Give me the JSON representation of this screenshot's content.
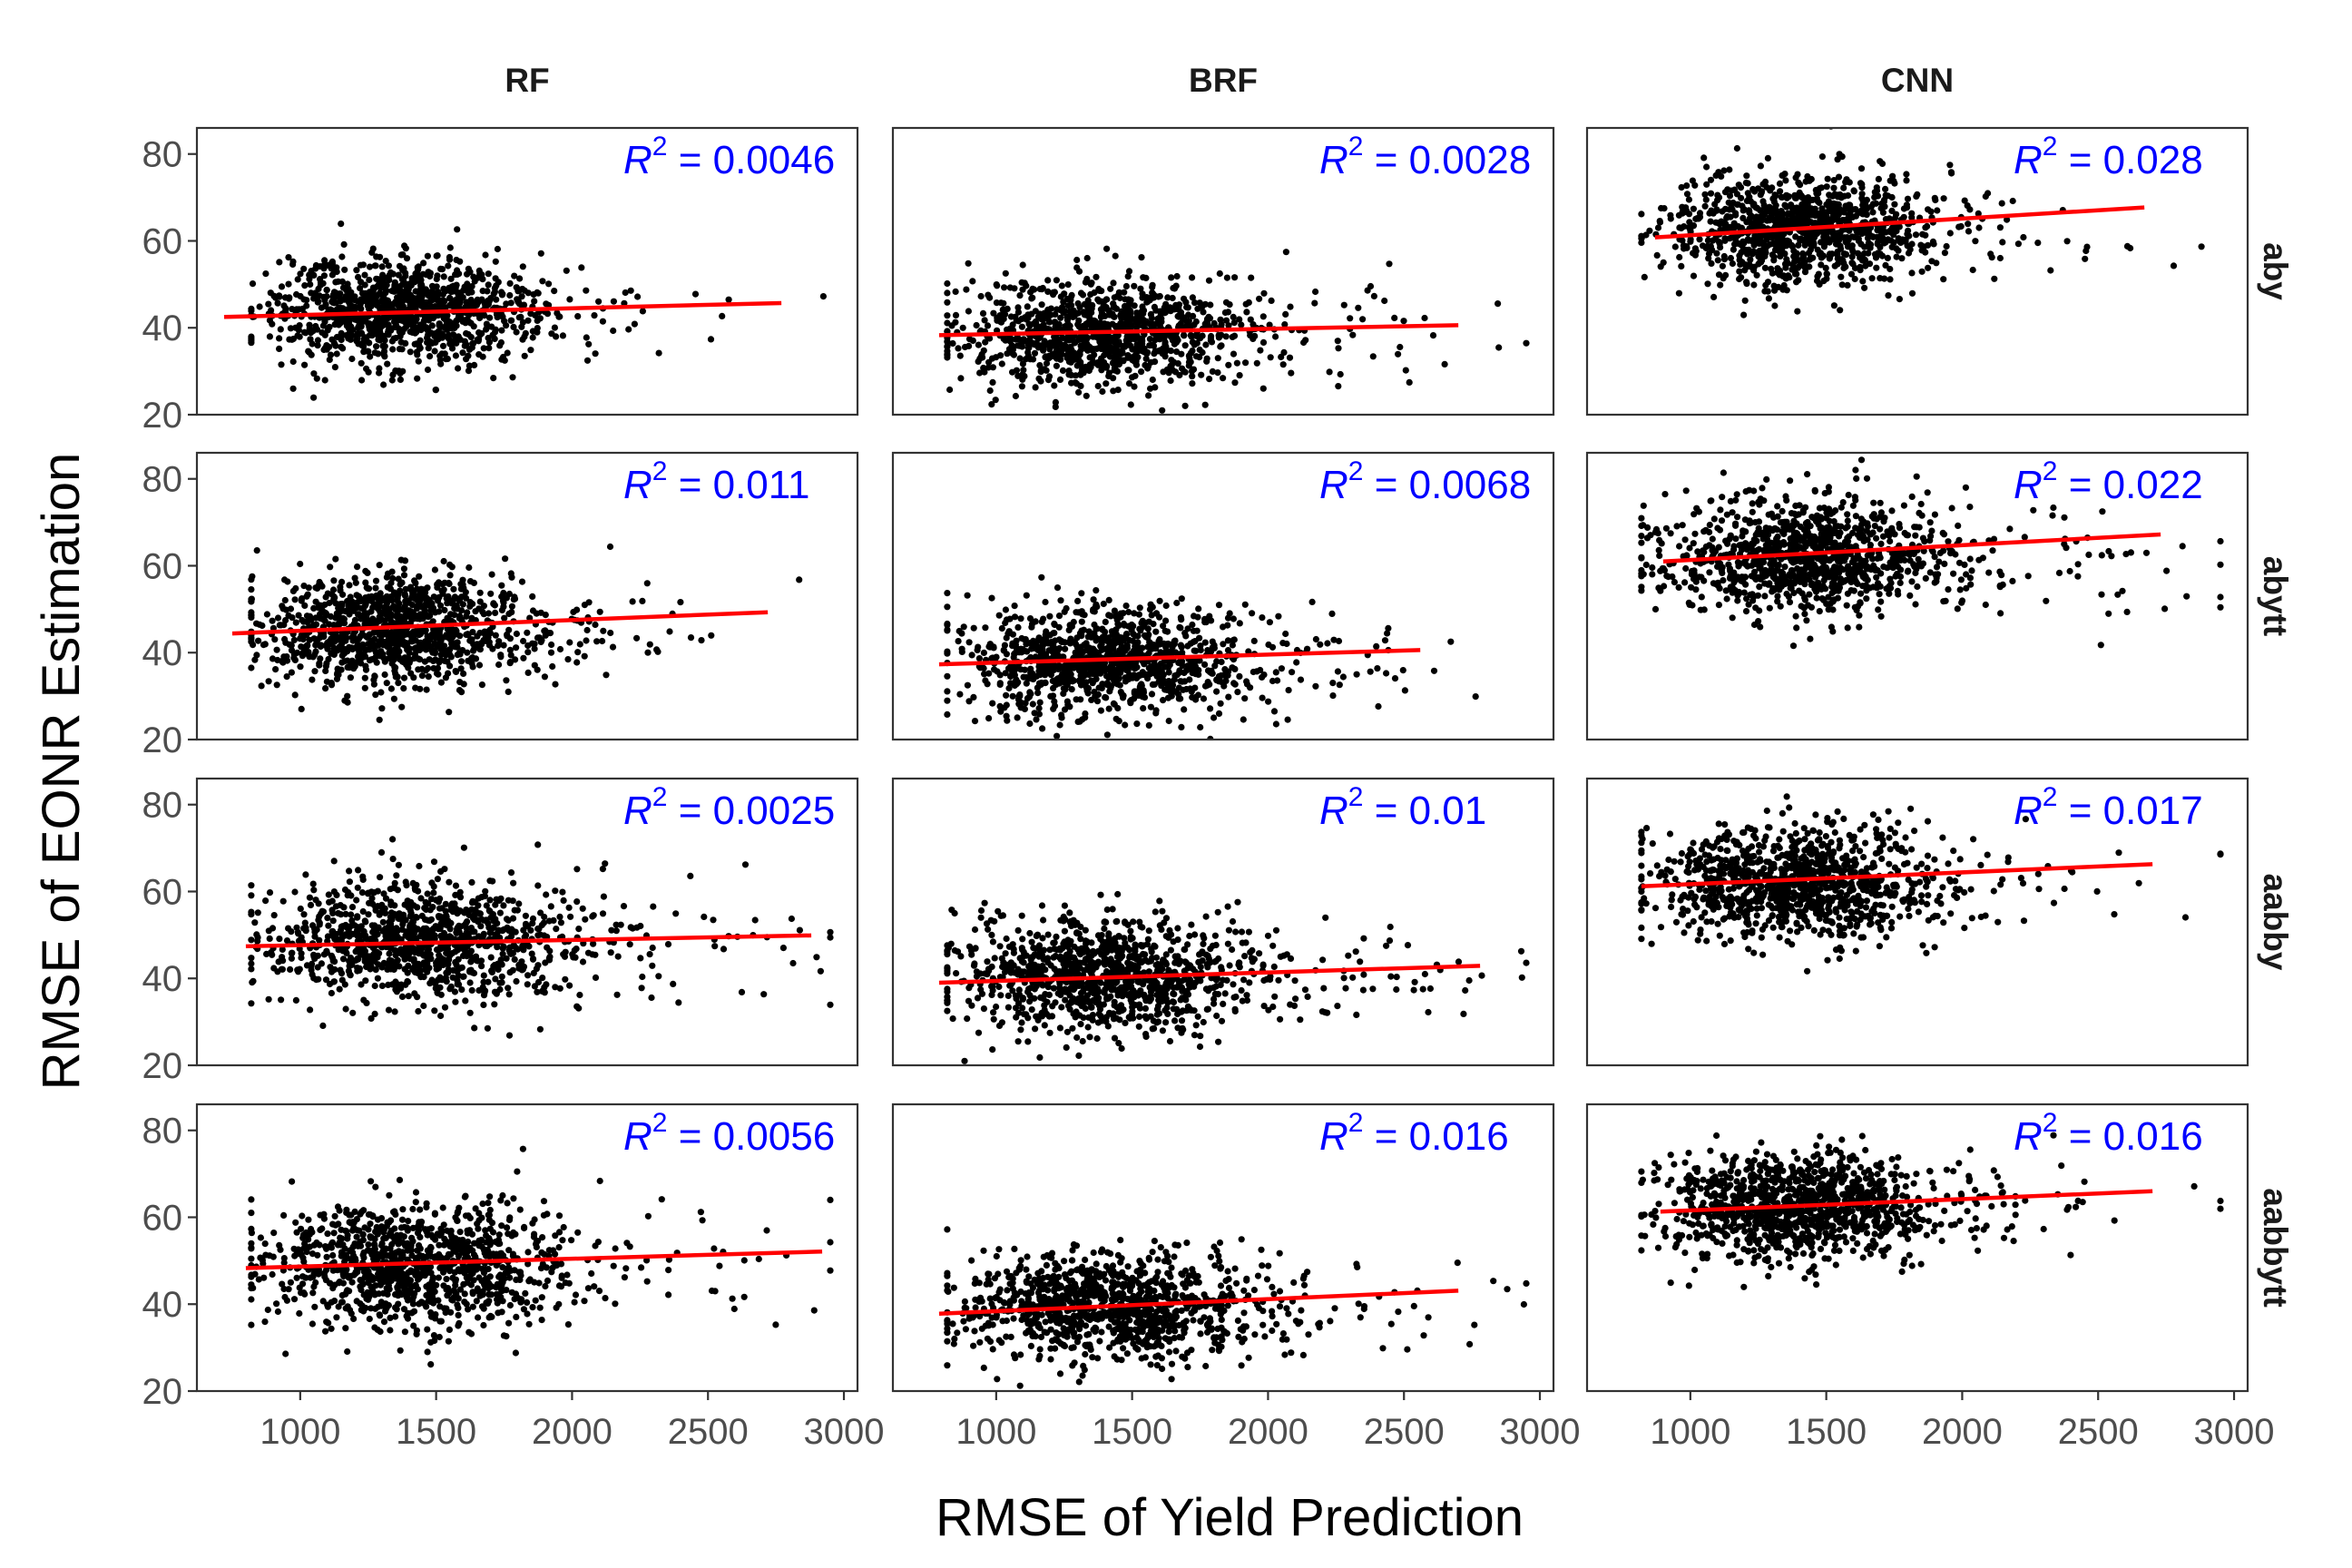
{
  "chart_data": {
    "type": "scatter",
    "layout": "facet-grid",
    "xlabel": "RMSE of Yield Prediction",
    "ylabel": "RMSE of EONR Estimation",
    "xlim": [
      620,
      3050
    ],
    "ylim": [
      20,
      86
    ],
    "xticks": [
      1000,
      1500,
      2000,
      2500,
      3000
    ],
    "yticks": [
      20,
      40,
      60,
      80
    ],
    "grid": false,
    "colors": {
      "points": "#000000",
      "fit_line": "#ff0000",
      "annotation": "#0000ff"
    },
    "columns": [
      "RF",
      "BRF",
      "CNN"
    ],
    "rows": [
      "aby",
      "abytt",
      "aabby",
      "aabbytt"
    ],
    "r2_prefix": "R",
    "r2_exponent": "2",
    "panels": [
      {
        "model": "RF",
        "dataset": "aby",
        "r2_value": "= 0.0046",
        "x_center": 1350,
        "x_sd": 230,
        "y_center": 43.5,
        "y_sd": 6.0,
        "fit": {
          "x": [
            720,
            2770
          ],
          "y": [
            42.5,
            45.7
          ]
        }
      },
      {
        "model": "BRF",
        "dataset": "aby",
        "r2_value": "= 0.0028",
        "x_center": 1380,
        "x_sd": 260,
        "y_center": 39.0,
        "y_sd": 6.0,
        "fit": {
          "x": [
            790,
            2700
          ],
          "y": [
            38.3,
            40.6
          ]
        }
      },
      {
        "model": "CNN",
        "dataset": "aby",
        "r2_value": "= 0.028",
        "x_center": 1380,
        "x_sd": 230,
        "y_center": 62.5,
        "y_sd": 6.5,
        "fit": {
          "x": [
            870,
            2670
          ],
          "y": [
            60.8,
            67.7
          ]
        }
      },
      {
        "model": "RF",
        "dataset": "abytt",
        "r2_value": "= 0.011",
        "x_center": 1330,
        "x_sd": 230,
        "y_center": 45.5,
        "y_sd": 6.5,
        "fit": {
          "x": [
            750,
            2720
          ],
          "y": [
            44.4,
            49.3
          ]
        }
      },
      {
        "model": "BRF",
        "dataset": "abytt",
        "r2_value": "= 0.0068",
        "x_center": 1380,
        "x_sd": 250,
        "y_center": 38.0,
        "y_sd": 6.0,
        "fit": {
          "x": [
            790,
            2560
          ],
          "y": [
            37.3,
            40.6
          ]
        }
      },
      {
        "model": "CNN",
        "dataset": "abytt",
        "r2_value": "= 0.022",
        "x_center": 1400,
        "x_sd": 250,
        "y_center": 62.5,
        "y_sd": 6.5,
        "fit": {
          "x": [
            900,
            2730
          ],
          "y": [
            61.0,
            67.2
          ]
        }
      },
      {
        "model": "RF",
        "dataset": "aabby",
        "r2_value": "= 0.0025",
        "x_center": 1420,
        "x_sd": 280,
        "y_center": 48.5,
        "y_sd": 7.0,
        "fit": {
          "x": [
            800,
            2880
          ],
          "y": [
            47.4,
            49.9
          ]
        }
      },
      {
        "model": "BRF",
        "dataset": "aabby",
        "r2_value": "= 0.01",
        "x_center": 1380,
        "x_sd": 260,
        "y_center": 40.5,
        "y_sd": 6.5,
        "fit": {
          "x": [
            790,
            2780
          ],
          "y": [
            39.0,
            42.9
          ]
        }
      },
      {
        "model": "CNN",
        "dataset": "aabby",
        "r2_value": "= 0.017",
        "x_center": 1370,
        "x_sd": 250,
        "y_center": 62.0,
        "y_sd": 6.5,
        "fit": {
          "x": [
            820,
            2700
          ],
          "y": [
            61.2,
            66.3
          ]
        }
      },
      {
        "model": "RF",
        "dataset": "aabbytt",
        "r2_value": "= 0.0056",
        "x_center": 1400,
        "x_sd": 270,
        "y_center": 49.0,
        "y_sd": 7.0,
        "fit": {
          "x": [
            800,
            2920
          ],
          "y": [
            48.3,
            52.1
          ]
        }
      },
      {
        "model": "BRF",
        "dataset": "aabbytt",
        "r2_value": "= 0.016",
        "x_center": 1380,
        "x_sd": 260,
        "y_center": 39.5,
        "y_sd": 6.0,
        "fit": {
          "x": [
            790,
            2700
          ],
          "y": [
            37.8,
            43.1
          ]
        }
      },
      {
        "model": "CNN",
        "dataset": "aabbytt",
        "r2_value": "= 0.016",
        "x_center": 1390,
        "x_sd": 240,
        "y_center": 62.5,
        "y_sd": 6.0,
        "fit": {
          "x": [
            890,
            2700
          ],
          "y": [
            61.3,
            66.0
          ]
        }
      }
    ]
  }
}
